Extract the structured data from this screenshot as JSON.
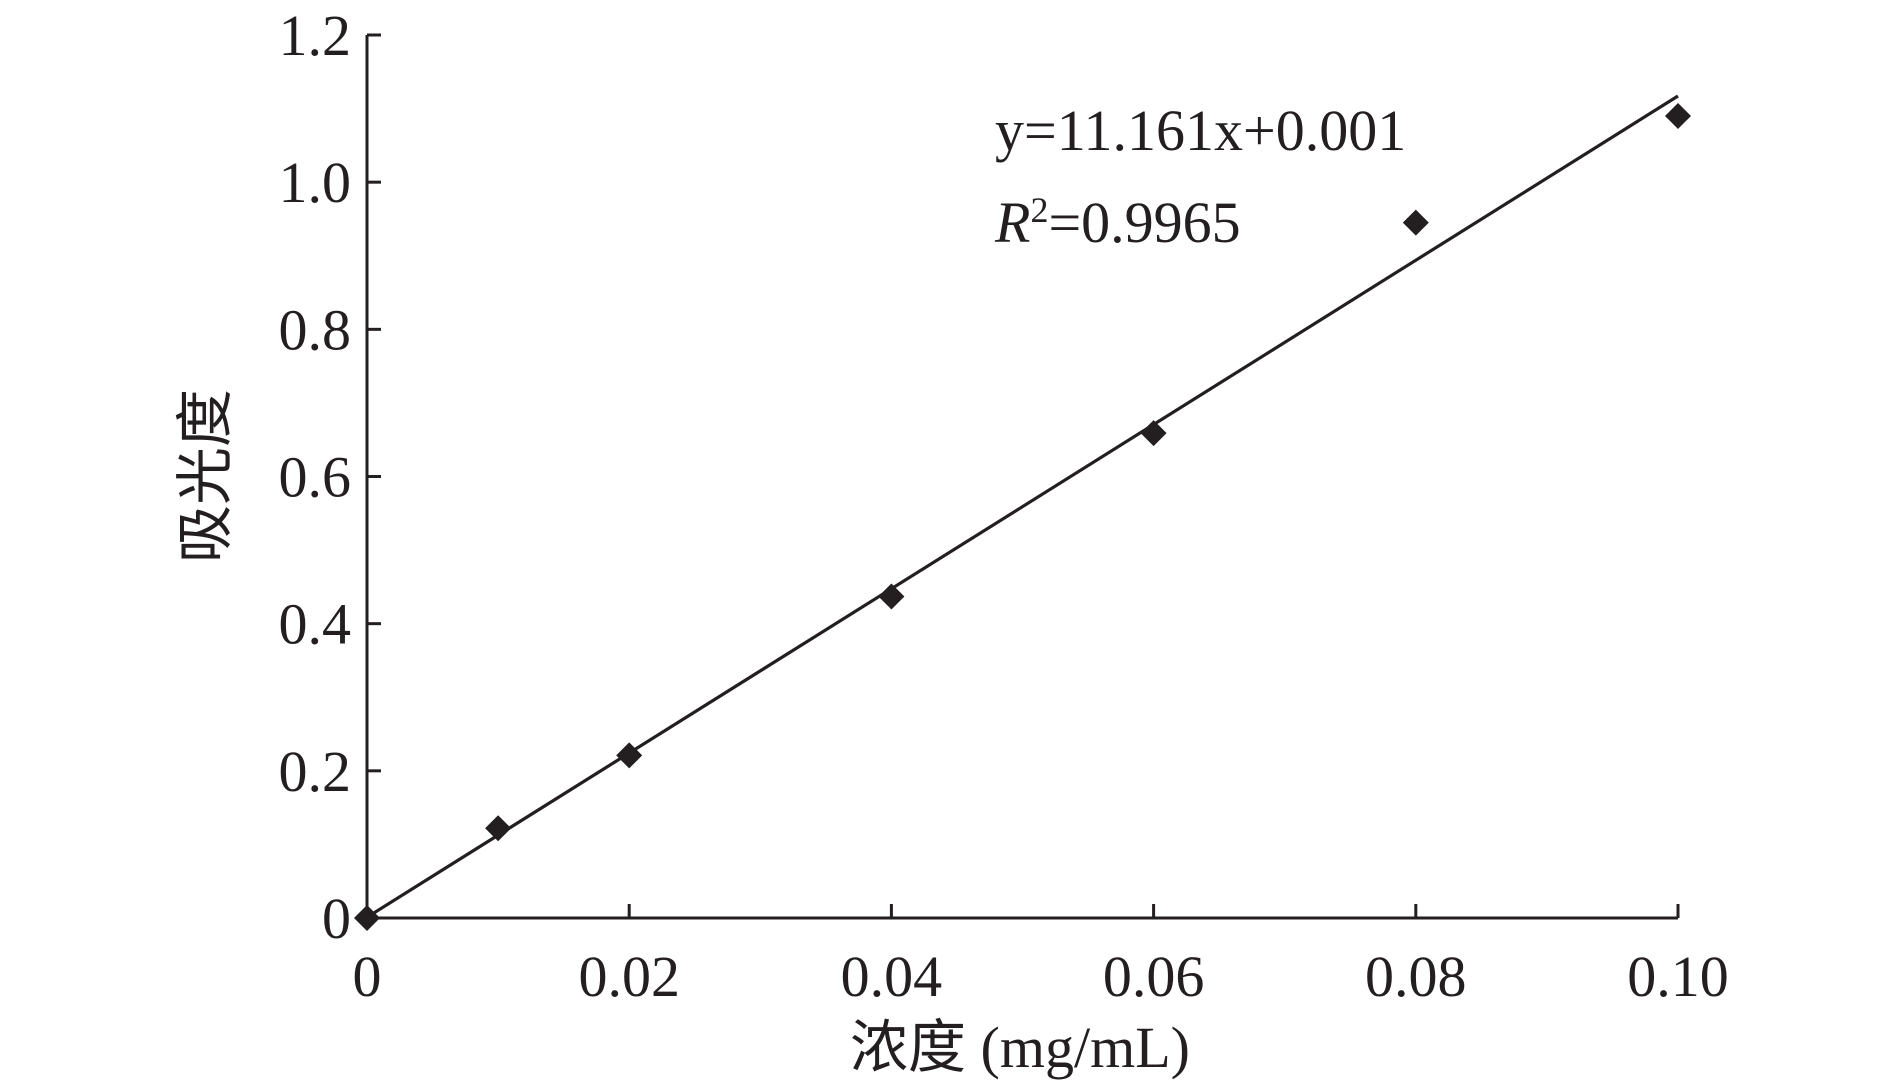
{
  "chart_data": {
    "type": "scatter",
    "xlabel": "浓度 (mg/mL)",
    "ylabel": "吸光度",
    "xlim": [
      0,
      0.1
    ],
    "ylim": [
      0,
      1.2
    ],
    "x_ticks": [
      0,
      0.02,
      0.04,
      0.06,
      0.08,
      0.1
    ],
    "x_tick_labels": [
      "0",
      "0.02",
      "0.04",
      "0.06",
      "0.08",
      "0.10"
    ],
    "y_ticks": [
      0,
      0.2,
      0.4,
      0.6,
      0.8,
      1.0,
      1.2
    ],
    "y_tick_labels": [
      "0",
      "0.2",
      "0.4",
      "0.6",
      "0.8",
      "1.0",
      "1.2"
    ],
    "grid": false,
    "series": [
      {
        "x": [
          0,
          0.01,
          0.02,
          0.04,
          0.06,
          0.08,
          0.1
        ],
        "y": [
          0,
          0.122,
          0.221,
          0.437,
          0.659,
          0.945,
          1.09
        ],
        "marker": "diamond",
        "color": "#231f20"
      }
    ],
    "trendline": {
      "slope": 11.161,
      "intercept": 0.001,
      "equation_label": "y=11.161x+0.001",
      "r2_prefix": "R",
      "r2_exponent": "2",
      "r2_value": "=0.9965"
    }
  }
}
